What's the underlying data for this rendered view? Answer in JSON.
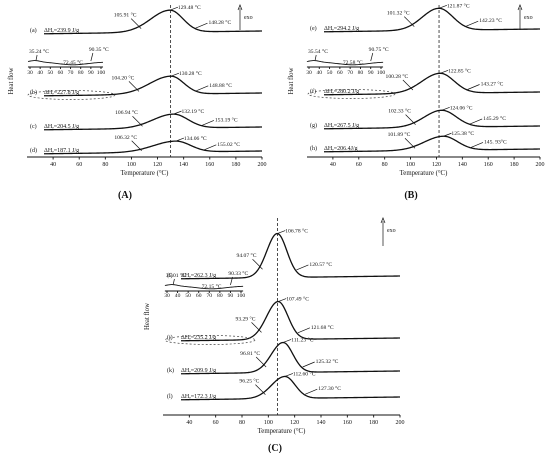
{
  "chart_data": [
    {
      "type": "line",
      "panel_label": "(A)",
      "xlabel": "Temperature (°C)",
      "ylabel": "Heat flow",
      "exo_label": "exo",
      "xlim": [
        20,
        200
      ],
      "xticks": [
        40,
        60,
        80,
        100,
        120,
        140,
        160,
        180,
        200
      ],
      "reference_line_x": 130,
      "curves": [
        {
          "label": "(a)",
          "dh_text": "ΔHₑ=239.9 J/g",
          "onset": 105.91,
          "peak": 129.48,
          "end": 148.28,
          "onset_text": "105.91 °C",
          "peak_text": "129.48 °C",
          "end_text": "148.28 °C"
        },
        {
          "label": "(b)",
          "dh_text": "ΔHₑ=227.8 J/g",
          "onset": 104.2,
          "peak": 130.28,
          "end": 148.88,
          "onset_text": "104.20 °C",
          "peak_text": "130.28 °C",
          "end_text": "148.88 °C"
        },
        {
          "label": "(c)",
          "dh_text": "ΔHₑ=204.5 J/g",
          "onset": 106.94,
          "peak": 132.19,
          "end": 153.19,
          "onset_text": "106.94 °C",
          "peak_text": "132.19 °C",
          "end_text": "153.19 °C"
        },
        {
          "label": "(d)",
          "dh_text": "ΔHₑ=187.1 J/g",
          "onset": 106.32,
          "peak": 134.06,
          "end": 155.02,
          "onset_text": "106.32 °C",
          "peak_text": "134.06 °C",
          "end_text": "155.02 °C"
        }
      ],
      "inset": {
        "xticks": [
          30,
          40,
          50,
          60,
          70,
          80,
          90,
          100
        ],
        "onset": 35.24,
        "peak": 72.45,
        "end": 90.35,
        "onset_text": "35.24 °C",
        "peak_text": "72.45 °C",
        "end_text": "90.35 °C"
      }
    },
    {
      "type": "line",
      "panel_label": "(B)",
      "xlabel": "Temperature (°C)",
      "ylabel": "Heat flow",
      "exo_label": "exo",
      "xlim": [
        20,
        200
      ],
      "xticks": [
        40,
        60,
        80,
        100,
        120,
        140,
        160,
        180,
        200
      ],
      "reference_line_x": 122,
      "curves": [
        {
          "label": "(e)",
          "dh_text": "ΔHₑ=294.2 J/g",
          "onset": 101.32,
          "peak": 121.87,
          "end": 142.23,
          "onset_text": "101.32 °C",
          "peak_text": "121.87 °C",
          "end_text": "142.23 °C"
        },
        {
          "label": "(f)",
          "dh_text": "ΔHₑ=280.2 J/g",
          "onset": 100.28,
          "peak": 122.85,
          "end": 143.27,
          "onset_text": "100.28 °C",
          "peak_text": "122.85 °C",
          "end_text": "143.27 °C"
        },
        {
          "label": "(g)",
          "dh_text": "ΔHₑ=267.5 J/g",
          "onset": 102.33,
          "peak": 124.06,
          "end": 145.29,
          "onset_text": "102.33 °C",
          "peak_text": "124.06 °C",
          "end_text": "145.29 °C"
        },
        {
          "label": "(h)",
          "dh_text": "ΔHₑ=206.4J/g",
          "onset": 101.89,
          "peak": 125.38,
          "end": 145.93,
          "onset_text": "101.89 °C",
          "peak_text": "125.38 °C",
          "end_text": "145. 93°C"
        }
      ],
      "inset": {
        "xticks": [
          30,
          40,
          50,
          60,
          70,
          80,
          90,
          100
        ],
        "onset": 35.54,
        "peak": 72.58,
        "end": 90.75,
        "onset_text": "35.54 °C",
        "peak_text": "72.58 °C",
        "end_text": "90.75 °C"
      }
    },
    {
      "type": "line",
      "panel_label": "(C)",
      "xlabel": "Temperature (°C)",
      "ylabel": "Heat flow",
      "exo_label": "exo",
      "xlim": [
        20,
        200
      ],
      "xticks": [
        40,
        60,
        80,
        100,
        120,
        140,
        160,
        180,
        200
      ],
      "reference_line_x": 107,
      "curves": [
        {
          "label": "(i)",
          "dh_text": "ΔHₑ=262.3 J/g",
          "onset": 94.07,
          "peak": 106.78,
          "end": 120.57,
          "onset_text": "94.07 °C",
          "peak_text": "106.78 °C",
          "end_text": "120.57 °C"
        },
        {
          "label": "(j)",
          "dh_text": "ΔHₑ=235.2 J/g",
          "onset": 93.29,
          "peak": 107.49,
          "end": 121.68,
          "onset_text": "93.29 °C",
          "peak_text": "107.49 °C",
          "end_text": "121.68 °C"
        },
        {
          "label": "(k)",
          "dh_text": "ΔHₑ=209.9 J/g",
          "onset": 96.81,
          "peak": 111.23,
          "end": 125.32,
          "onset_text": "96.81 °C",
          "peak_text": "111.23 °C",
          "end_text": "125.32 °C"
        },
        {
          "label": "(l)",
          "dh_text": "ΔHₑ=172.3 J/g",
          "onset": 96.25,
          "peak": 112.6,
          "end": 127.3,
          "onset_text": "96.25 °C",
          "peak_text": "112.60 °C",
          "end_text": "127.30 °C"
        }
      ],
      "inset": {
        "xticks": [
          30,
          40,
          50,
          60,
          70,
          80,
          90,
          100
        ],
        "onset": 35.01,
        "peak": 72.15,
        "end": 90.33,
        "onset_text": "35.01 °C",
        "peak_text": "72.15 °C",
        "end_text": "90.33 °C"
      }
    }
  ]
}
